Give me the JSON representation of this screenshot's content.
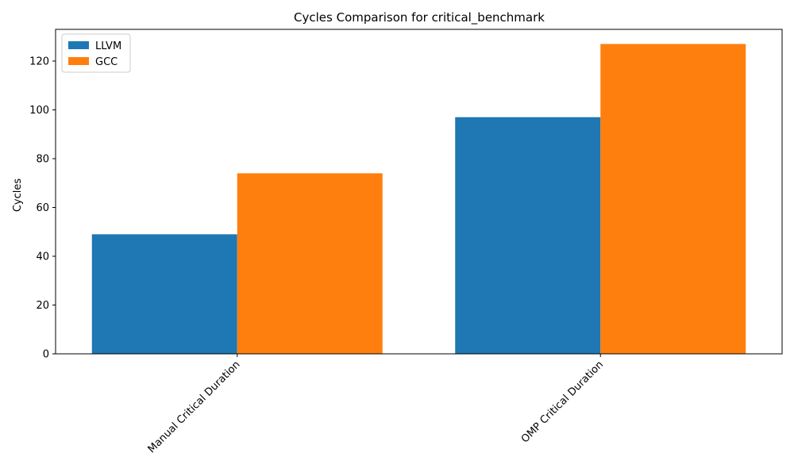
{
  "chart_data": {
    "type": "bar",
    "title": "Cycles Comparison for critical_benchmark",
    "xlabel": "",
    "ylabel": "Cycles",
    "categories": [
      "Manual Critical Duration",
      "OMP Critical Duration"
    ],
    "series": [
      {
        "name": "LLVM",
        "values": [
          49,
          97
        ],
        "color": "#1f77b4"
      },
      {
        "name": "GCC",
        "values": [
          74,
          127
        ],
        "color": "#ff7f0e"
      }
    ],
    "ylim": [
      0,
      133
    ],
    "yticks": [
      0,
      20,
      40,
      60,
      80,
      100,
      120
    ],
    "grid": false,
    "legend_position": "top-left"
  }
}
